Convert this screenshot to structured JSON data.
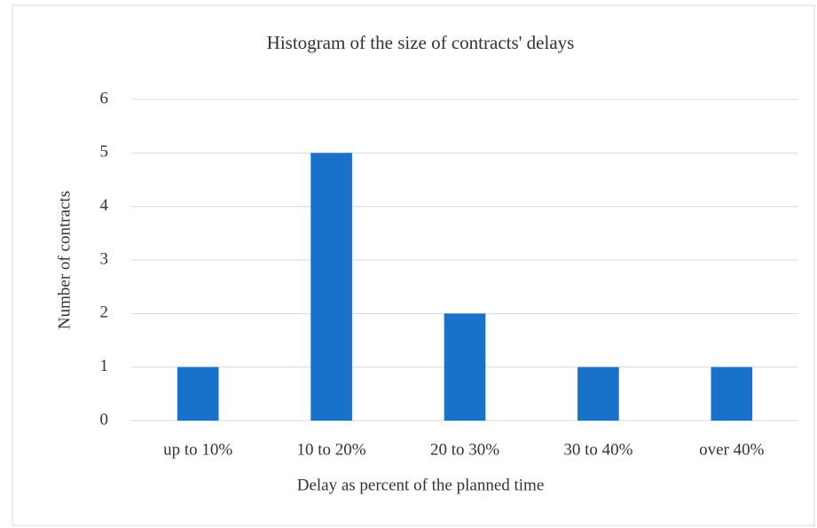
{
  "chart_data": {
    "type": "bar",
    "title": "Histogram of the size of contracts' delays",
    "xlabel": "Delay as percent of the planned time",
    "ylabel": "Number of contracts",
    "categories": [
      "up to 10%",
      "10 to 20%",
      "20 to 30%",
      "30 to 40%",
      "over 40%"
    ],
    "values": [
      1,
      5,
      2,
      1,
      1
    ],
    "color": "#1872c9",
    "ylim": [
      0,
      6
    ],
    "yticks": [
      0,
      1,
      2,
      3,
      4,
      5,
      6
    ],
    "grid": true
  }
}
